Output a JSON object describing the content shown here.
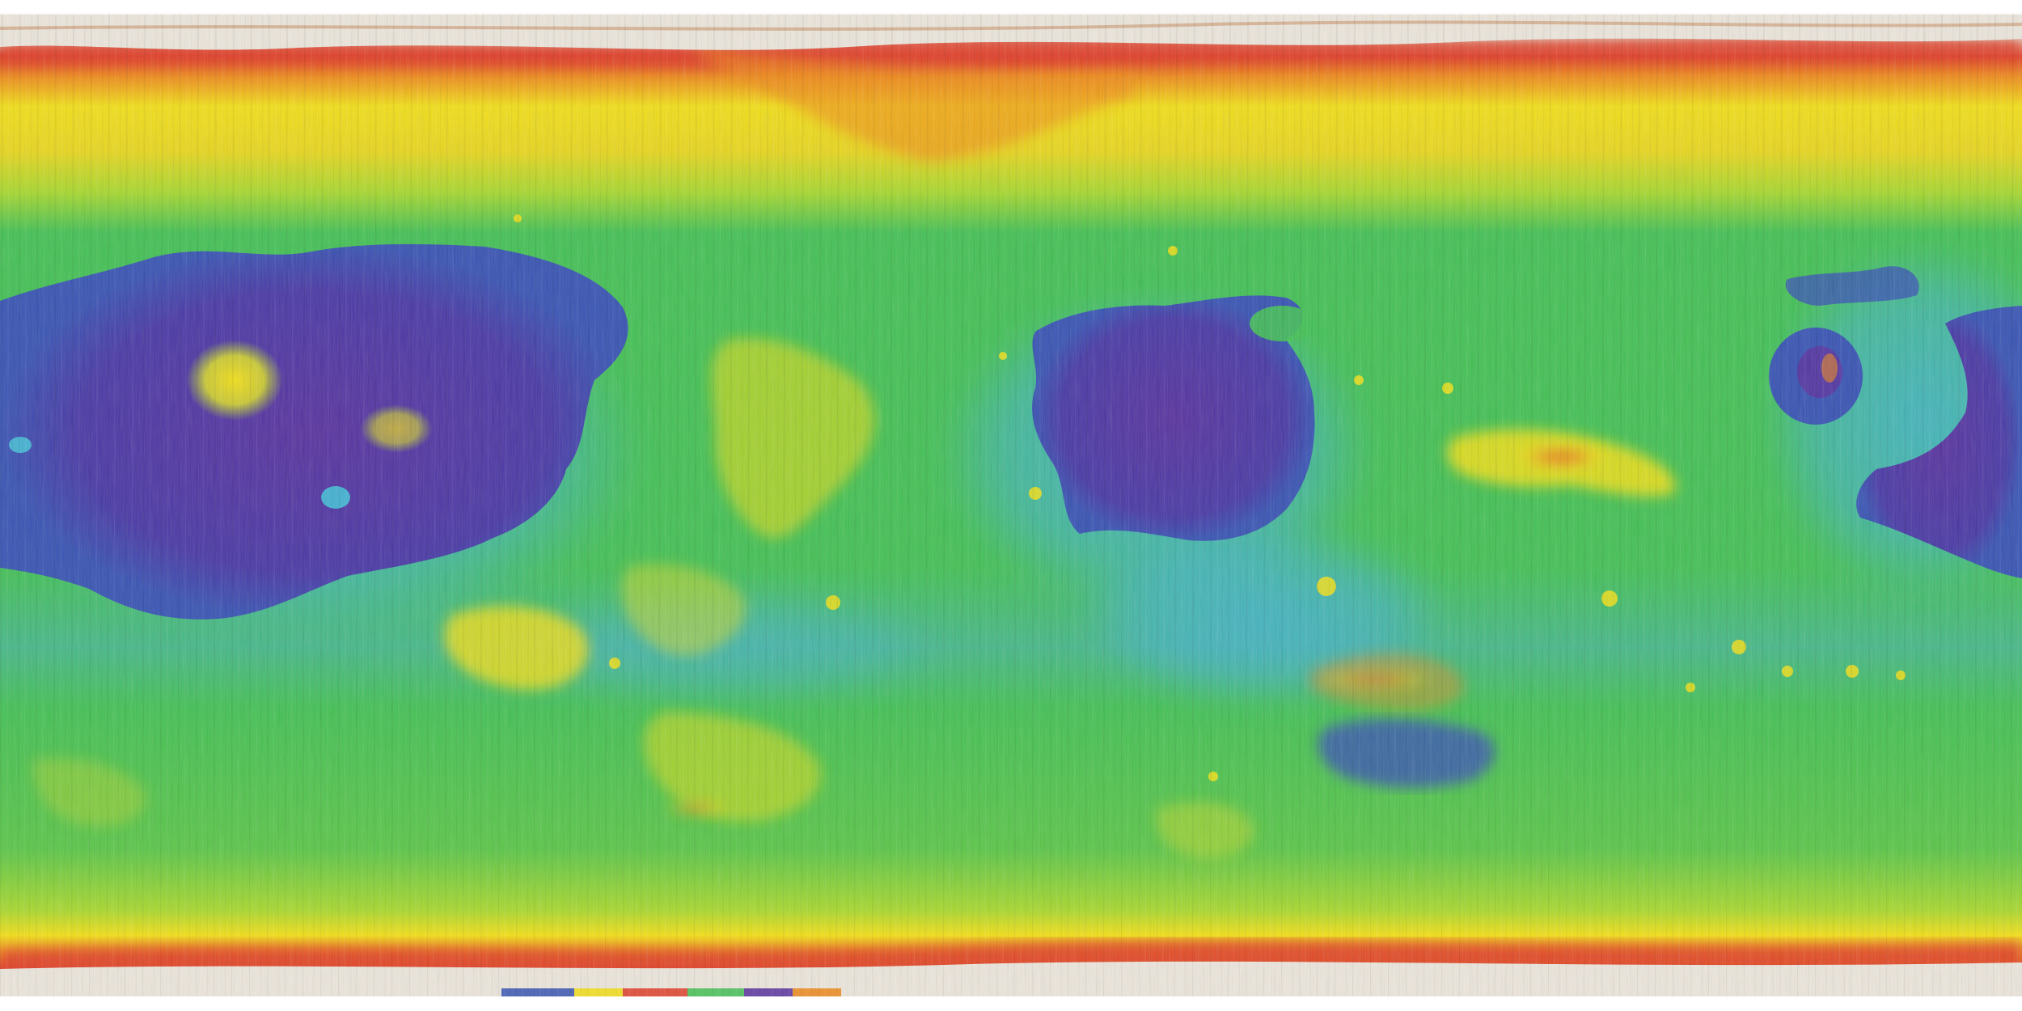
{
  "map": {
    "kind": "global equirectangular color-coded map",
    "colors": {
      "background": "#ffffff",
      "polar_white": "#ece6dc",
      "polar_streak": "#c9956a",
      "red": "#e0402a",
      "orange": "#ee8a1e",
      "yellow": "#f2df1a",
      "yellow_green": "#a9d830",
      "green": "#45c156",
      "cyan": "#46b2d2",
      "blue": "#3a55b4",
      "indigo": "#3f3a9e",
      "violet": "#5a34a0"
    },
    "icons": []
  }
}
